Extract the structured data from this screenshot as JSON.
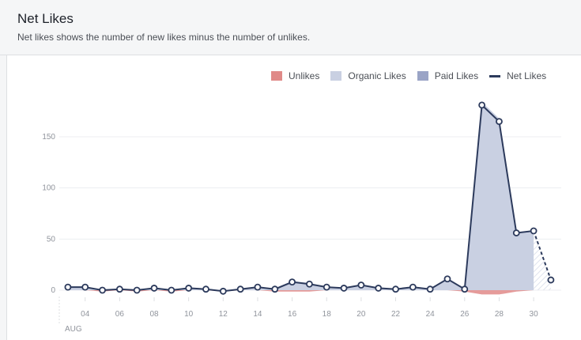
{
  "header": {
    "title": "Net Likes",
    "subtitle": "Net likes shows the number of new likes minus the number of unlikes."
  },
  "legend": [
    {
      "label": "Unlikes",
      "color": "#e08a88",
      "kind": "box"
    },
    {
      "label": "Organic Likes",
      "color": "#c9d0e2",
      "kind": "box"
    },
    {
      "label": "Paid Likes",
      "color": "#9aa4c6",
      "kind": "box"
    },
    {
      "label": "Net Likes",
      "color": "#2c3a5c",
      "kind": "line"
    }
  ],
  "chart_data": {
    "type": "area",
    "x_days": [
      3,
      4,
      5,
      6,
      7,
      8,
      9,
      10,
      11,
      12,
      13,
      14,
      15,
      16,
      17,
      18,
      19,
      20,
      21,
      22,
      23,
      24,
      25,
      26,
      27,
      28,
      29,
      30,
      31
    ],
    "x_ticks": [
      "04",
      "06",
      "08",
      "10",
      "12",
      "14",
      "16",
      "18",
      "20",
      "22",
      "24",
      "26",
      "28",
      "30"
    ],
    "x_tick_days": [
      4,
      6,
      8,
      10,
      12,
      14,
      16,
      18,
      20,
      22,
      24,
      26,
      28,
      30
    ],
    "month_label": "AUG",
    "y_ticks": [
      "0",
      "50",
      "100",
      "150"
    ],
    "y_tick_values": [
      0,
      50,
      100,
      150
    ],
    "ylim": [
      -5,
      185
    ],
    "series": [
      {
        "name": "Net Likes",
        "values": [
          3,
          3,
          0,
          1,
          0,
          2,
          0,
          2,
          1,
          -1,
          1,
          3,
          1,
          8,
          6,
          3,
          2,
          5,
          2,
          1,
          3,
          1,
          11,
          1,
          181,
          165,
          56,
          58,
          10
        ]
      },
      {
        "name": "Organic Likes",
        "values": [
          3,
          3,
          1,
          1,
          1,
          2,
          1,
          2,
          1,
          0,
          1,
          3,
          2,
          9,
          7,
          3,
          2,
          5,
          2,
          1,
          3,
          1,
          11,
          2,
          184,
          168,
          57,
          58,
          10
        ]
      },
      {
        "name": "Unlikes",
        "values": [
          0,
          0,
          -1,
          0,
          -1,
          0,
          -1,
          0,
          0,
          -1,
          0,
          0,
          -1,
          -1,
          -1,
          0,
          0,
          0,
          0,
          0,
          0,
          0,
          0,
          -1,
          -3,
          -3,
          -1,
          0,
          0
        ]
      }
    ],
    "projected_from_index": 27
  }
}
